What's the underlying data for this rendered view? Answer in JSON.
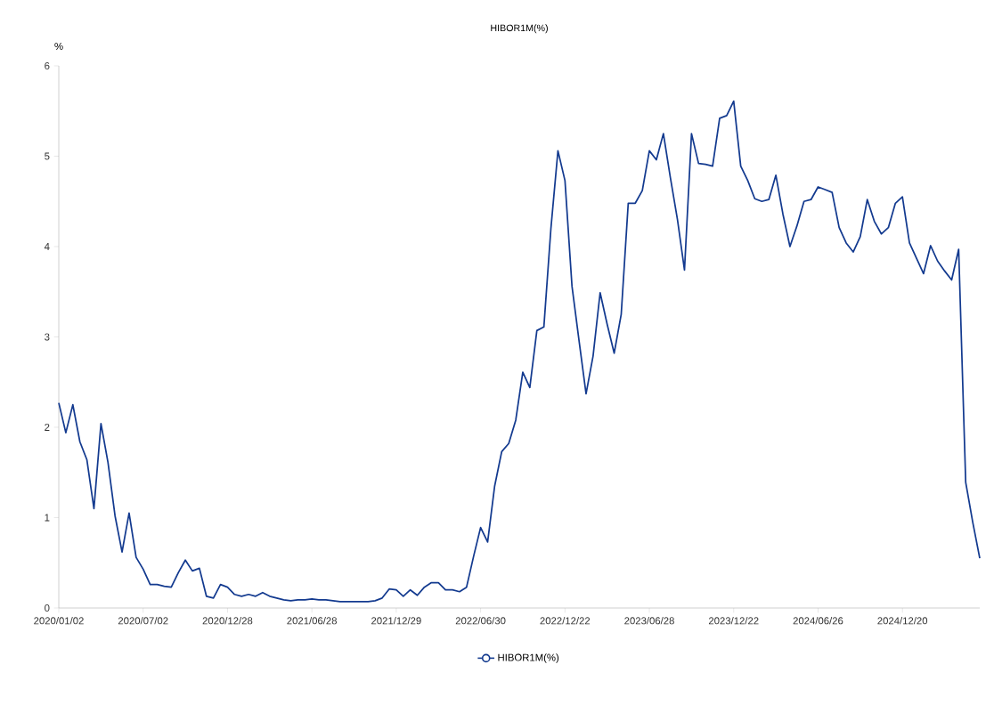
{
  "chart_data": {
    "type": "line",
    "title": "HIBOR1M(%)",
    "ylabel": "%",
    "categories": [
      "2020/01/02",
      null,
      null,
      null,
      null,
      null,
      null,
      null,
      null,
      null,
      null,
      null,
      "2020/07/02",
      null,
      null,
      null,
      null,
      null,
      null,
      null,
      null,
      null,
      null,
      null,
      "2020/12/28",
      null,
      null,
      null,
      null,
      null,
      null,
      null,
      null,
      null,
      null,
      null,
      "2021/06/28",
      null,
      null,
      null,
      null,
      null,
      null,
      null,
      null,
      null,
      null,
      null,
      "2021/12/29",
      null,
      null,
      null,
      null,
      null,
      null,
      null,
      null,
      null,
      null,
      null,
      "2022/06/30",
      null,
      null,
      null,
      null,
      null,
      null,
      null,
      null,
      null,
      null,
      null,
      "2022/12/22",
      null,
      null,
      null,
      null,
      null,
      null,
      null,
      null,
      null,
      null,
      null,
      "2023/06/28",
      null,
      null,
      null,
      null,
      null,
      null,
      null,
      null,
      null,
      null,
      null,
      "2023/12/22",
      null,
      null,
      null,
      null,
      null,
      null,
      null,
      null,
      null,
      null,
      null,
      "2024/06/26",
      null,
      null,
      null,
      null,
      null,
      null,
      null,
      null,
      null,
      null,
      null,
      "2024/12/20",
      null,
      null,
      null,
      null,
      null,
      null,
      null,
      null,
      null,
      null,
      null
    ],
    "series": [
      {
        "name": "HIBOR1M(%)",
        "color": "#133a8f",
        "values": [
          2.27,
          1.94,
          2.25,
          1.84,
          1.64,
          1.1,
          2.04,
          1.61,
          1.02,
          0.62,
          1.05,
          0.56,
          0.43,
          0.26,
          0.26,
          0.24,
          0.23,
          0.39,
          0.53,
          0.41,
          0.44,
          0.13,
          0.11,
          0.26,
          0.23,
          0.15,
          0.13,
          0.15,
          0.13,
          0.17,
          0.13,
          0.11,
          0.09,
          0.08,
          0.09,
          0.09,
          0.1,
          0.09,
          0.09,
          0.08,
          0.07,
          0.07,
          0.07,
          0.07,
          0.07,
          0.08,
          0.11,
          0.21,
          0.2,
          0.13,
          0.2,
          0.14,
          0.23,
          0.28,
          0.28,
          0.2,
          0.2,
          0.18,
          0.23,
          0.57,
          0.89,
          0.73,
          1.35,
          1.73,
          1.82,
          2.08,
          2.61,
          2.44,
          3.07,
          3.11,
          4.2,
          5.06,
          4.73,
          3.56,
          2.96,
          2.37,
          2.79,
          3.49,
          3.14,
          2.82,
          3.25,
          4.48,
          4.48,
          4.62,
          5.06,
          4.96,
          5.25,
          4.76,
          4.3,
          3.74,
          5.25,
          4.92,
          4.91,
          4.89,
          5.42,
          5.45,
          5.61,
          4.89,
          4.73,
          4.53,
          4.5,
          4.52,
          4.79,
          4.36,
          4.0,
          4.23,
          4.5,
          4.52,
          4.66,
          4.63,
          4.6,
          4.21,
          4.04,
          3.94,
          4.11,
          4.52,
          4.28,
          4.14,
          4.21,
          4.48,
          4.55,
          4.04,
          3.87,
          3.7,
          4.01,
          3.84,
          3.73,
          3.63,
          3.97,
          1.39,
          0.95,
          0.55
        ]
      }
    ],
    "ylim": [
      0,
      6
    ],
    "yticks": [
      0,
      1,
      2,
      3,
      4,
      5,
      6
    ],
    "legend": "bottom"
  }
}
